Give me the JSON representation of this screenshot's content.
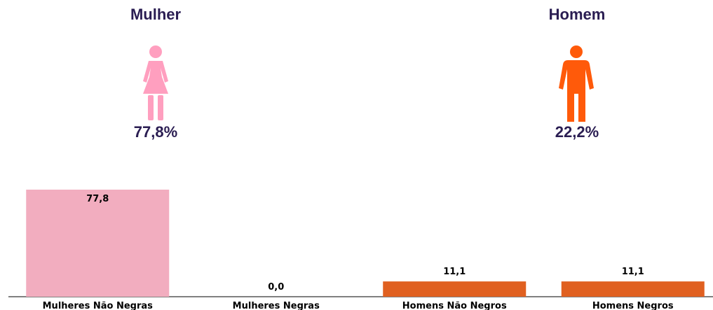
{
  "panels": [
    {
      "title": "Mulher",
      "percent": "77,8%",
      "icon": "female-figure-icon",
      "color": "#ff9fbf"
    },
    {
      "title": "Homem",
      "percent": "22,2%",
      "icon": "male-figure-icon",
      "color": "#ff5a0a"
    }
  ],
  "chart_data": {
    "type": "bar",
    "categories": [
      "Mulheres Não Negras",
      "Mulheres Negras",
      "Homens Não Negros",
      "Homens Negros"
    ],
    "values": [
      77.8,
      0.0,
      11.1,
      11.1
    ],
    "value_labels": [
      "77,8",
      "0,0",
      "11,1",
      "11,1"
    ],
    "bar_colors": [
      "#f2adbf",
      "#f2adbf",
      "#e06020",
      "#e06020"
    ],
    "title": "",
    "xlabel": "",
    "ylabel": "",
    "ylim": [
      0,
      100
    ],
    "grid": false,
    "legend": "none"
  }
}
